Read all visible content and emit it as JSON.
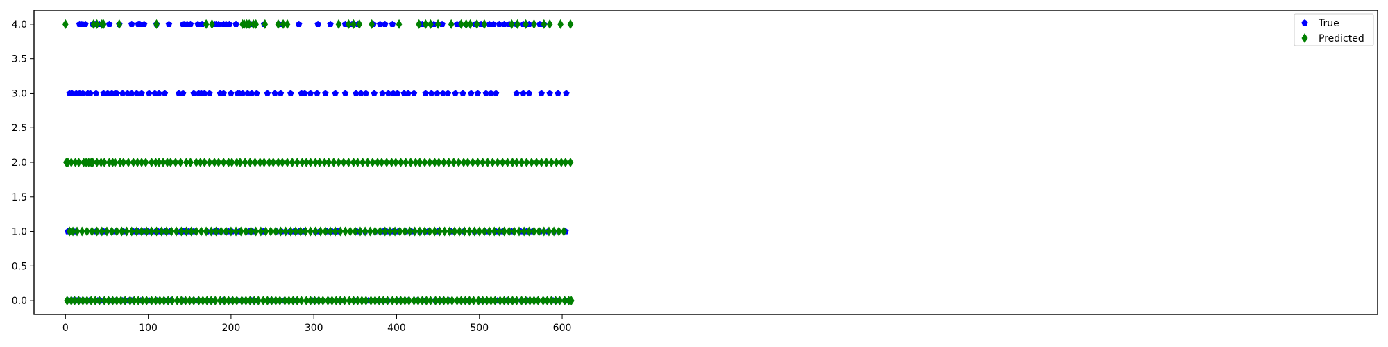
{
  "chart_data": {
    "type": "scatter",
    "title": "",
    "xlabel": "",
    "ylabel": "",
    "xlim": [
      -38,
      1585
    ],
    "ylim": [
      -0.2,
      4.2
    ],
    "x_ticks": [
      0,
      100,
      200,
      300,
      400,
      500,
      600
    ],
    "y_ticks": [
      0.0,
      0.5,
      1.0,
      1.5,
      2.0,
      2.5,
      3.0,
      3.5,
      4.0
    ],
    "x_tick_labels": [
      "0",
      "100",
      "200",
      "300",
      "400",
      "500",
      "600"
    ],
    "y_tick_labels": [
      "0.0",
      "0.5",
      "1.0",
      "1.5",
      "2.0",
      "2.5",
      "3.0",
      "3.5",
      "4.0"
    ],
    "grid": false,
    "legend_position": "top-right",
    "series": [
      {
        "name": "True",
        "color": "#0000ff",
        "marker": "pentagon",
        "points_by_class": {
          "4": [
            17,
            19,
            21,
            24,
            33,
            36,
            41,
            45,
            53,
            65,
            80,
            88,
            90,
            95,
            110,
            125,
            142,
            144,
            147,
            151,
            160,
            165,
            180,
            182,
            185,
            191,
            194,
            198,
            206,
            220,
            224,
            228,
            240,
            258,
            262,
            282,
            305,
            320,
            338,
            346,
            353,
            372,
            380,
            386,
            395,
            429,
            431,
            442,
            445,
            455,
            473,
            476,
            484,
            495,
            502,
            512,
            517,
            524,
            530,
            536,
            545,
            553,
            560,
            573,
            578
          ],
          "3": [
            5,
            8,
            13,
            17,
            21,
            27,
            30,
            37,
            46,
            51,
            56,
            60,
            62,
            69,
            75,
            80,
            86,
            92,
            101,
            108,
            113,
            120,
            137,
            142,
            155,
            161,
            164,
            168,
            174,
            187,
            191,
            200,
            208,
            210,
            214,
            220,
            225,
            231,
            244,
            253,
            260,
            272,
            285,
            289,
            296,
            304,
            314,
            326,
            338,
            351,
            357,
            363,
            373,
            383,
            390,
            396,
            401,
            409,
            414,
            421,
            435,
            442,
            449,
            456,
            462,
            471,
            480,
            490,
            498,
            508,
            514,
            520,
            545,
            553,
            560,
            575,
            585,
            595,
            605
          ],
          "1": [
            3,
            10,
            13,
            37,
            44,
            46,
            56,
            61,
            70,
            82,
            88,
            95,
            100,
            109,
            112,
            120,
            126,
            139,
            143,
            149,
            155,
            171,
            180,
            184,
            194,
            197,
            201,
            210,
            222,
            226,
            237,
            239,
            255,
            261,
            271,
            276,
            282,
            288,
            302,
            307,
            316,
            322,
            329,
            352,
            362,
            374,
            384,
            388,
            396,
            402,
            411,
            418,
            428,
            438,
            450,
            466,
            481,
            494,
            507,
            512,
            520,
            528,
            539,
            550,
            557,
            560,
            564,
            573,
            583,
            590,
            604
          ],
          "0": [
            4,
            9,
            14,
            18,
            22,
            29,
            39,
            42,
            53,
            60,
            69,
            76,
            80,
            91,
            101,
            111,
            120,
            127,
            142,
            154,
            160,
            171,
            176,
            190,
            201,
            208,
            214,
            225,
            232,
            248,
            254,
            264,
            276,
            298,
            305,
            311,
            318,
            332,
            352,
            366,
            378,
            384,
            389,
            404,
            413,
            424,
            432,
            447,
            456,
            464,
            478,
            487,
            500,
            509,
            522,
            533,
            540,
            551,
            558,
            570,
            578,
            589,
            596,
            604
          ]
        }
      },
      {
        "name": "Predicted",
        "color": "#008000",
        "marker": "thin_diamond",
        "points_by_class": {
          "4": [
            0,
            34,
            38,
            44,
            46,
            65,
            110,
            170,
            177,
            214,
            216,
            219,
            222,
            227,
            230,
            241,
            257,
            263,
            268,
            330,
            342,
            348,
            355,
            370,
            403,
            427,
            435,
            441,
            450,
            466,
            478,
            484,
            489,
            497,
            506,
            539,
            546,
            556,
            566,
            578,
            585,
            598,
            610
          ],
          "2": [
            1,
            3,
            7,
            12,
            16,
            22,
            25,
            28,
            31,
            33,
            38,
            43,
            47,
            53,
            57,
            60,
            66,
            70,
            76,
            82,
            87,
            92,
            97,
            104,
            109,
            113,
            118,
            123,
            127,
            133,
            139,
            146,
            151,
            158,
            163,
            168,
            174,
            180,
            185,
            191,
            197,
            201,
            207,
            211,
            217,
            223,
            229,
            235,
            240,
            246,
            251,
            257,
            262,
            268,
            274,
            280,
            286,
            291,
            296,
            302,
            307,
            313,
            318,
            324,
            330,
            336,
            342,
            348,
            353,
            359,
            365,
            371,
            377,
            382,
            388,
            394,
            399,
            405,
            411,
            417,
            423,
            428,
            434,
            440,
            446,
            451,
            457,
            463,
            469,
            475,
            481,
            486,
            492,
            498,
            504,
            510,
            516,
            522,
            528,
            534,
            540,
            545,
            551,
            557,
            563,
            569,
            575,
            581,
            587,
            593,
            599,
            604,
            610
          ],
          "1": [
            5,
            9,
            14,
            20,
            26,
            32,
            38,
            44,
            50,
            56,
            62,
            68,
            74,
            80,
            86,
            92,
            98,
            104,
            110,
            116,
            122,
            128,
            134,
            140,
            146,
            152,
            158,
            164,
            170,
            176,
            182,
            188,
            194,
            200,
            206,
            212,
            218,
            224,
            230,
            236,
            242,
            248,
            254,
            260,
            266,
            272,
            278,
            284,
            290,
            296,
            302,
            308,
            314,
            320,
            326,
            332,
            338,
            344,
            350,
            356,
            362,
            368,
            374,
            380,
            386,
            392,
            398,
            404,
            410,
            416,
            422,
            428,
            434,
            440,
            446,
            452,
            458,
            464,
            470,
            476,
            482,
            488,
            494,
            500,
            506,
            512,
            518,
            524,
            530,
            536,
            542,
            548,
            554,
            560,
            566,
            572,
            578,
            584,
            590,
            596,
            602
          ],
          "0": [
            2,
            7,
            11,
            16,
            21,
            26,
            31,
            36,
            41,
            47,
            52,
            57,
            62,
            67,
            72,
            78,
            83,
            88,
            93,
            98,
            104,
            109,
            114,
            119,
            124,
            129,
            135,
            140,
            145,
            150,
            155,
            161,
            166,
            171,
            176,
            181,
            187,
            192,
            197,
            202,
            207,
            213,
            218,
            223,
            228,
            233,
            239,
            244,
            249,
            254,
            259,
            265,
            270,
            275,
            280,
            285,
            291,
            296,
            301,
            306,
            311,
            317,
            322,
            327,
            332,
            337,
            343,
            348,
            353,
            358,
            363,
            369,
            374,
            379,
            384,
            389,
            395,
            400,
            405,
            410,
            415,
            421,
            426,
            431,
            436,
            441,
            447,
            452,
            457,
            462,
            467,
            473,
            478,
            483,
            488,
            493,
            499,
            504,
            509,
            514,
            519,
            525,
            530,
            535,
            540,
            545,
            551,
            556,
            561,
            566,
            571,
            577,
            582,
            587,
            592,
            597,
            603,
            608,
            611
          ]
        }
      }
    ]
  }
}
